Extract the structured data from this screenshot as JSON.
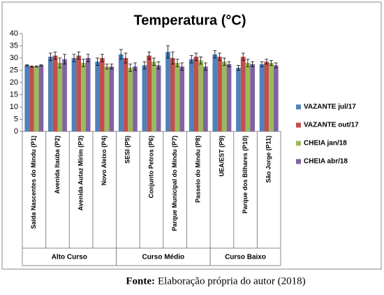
{
  "chart_data": {
    "type": "bar",
    "title": "Temperatura (°C)",
    "categories": [
      "Saída Nascentes do Mindu (P1)",
      "Avenida Itaúba (P2)",
      "Avenida Autaz Mirim (P3)",
      "Novo Aleixo (P4)",
      "SESI (P5)",
      "Conjunto Petros (P6)",
      "Parque Municipal do Mindu (P7)",
      "Passeio do Mindu (P8)",
      "UEA/EST (P9)",
      "Parque dos Bilhares (P10)",
      "São Jorge (P11)"
    ],
    "groups": [
      {
        "name": "Alto Curso",
        "size": 4
      },
      {
        "name": "Curso Médio",
        "size": 4
      },
      {
        "name": "Curso Baixo",
        "size": 3
      }
    ],
    "series": [
      {
        "name": "VAZANTE jul/17",
        "color": "#4f81bd",
        "values": [
          27,
          30.5,
          30,
          28.5,
          31.5,
          27,
          32.5,
          29.5,
          31.5,
          26,
          27.5
        ],
        "errors": [
          0.2,
          1.5,
          1.5,
          1.5,
          2,
          1.5,
          2.5,
          1.5,
          1.5,
          1,
          1
        ]
      },
      {
        "name": "VAZANTE out/17",
        "color": "#c0504d",
        "values": [
          26.5,
          31,
          31,
          30,
          30,
          31,
          30,
          30.5,
          30.5,
          30.5,
          28.5
        ],
        "errors": [
          0.2,
          1.5,
          1.5,
          1.5,
          2,
          1.5,
          2.5,
          1.5,
          1.5,
          1.5,
          1
        ]
      },
      {
        "name": "CHEIA jan/18",
        "color": "#9bbb59",
        "values": [
          26.5,
          28,
          28,
          26.5,
          26,
          28.5,
          28,
          29,
          28.5,
          28,
          28
        ],
        "errors": [
          0.2,
          2,
          1.5,
          1,
          1.5,
          1.5,
          1.5,
          1.5,
          1.5,
          1.5,
          1
        ]
      },
      {
        "name": "CHEIA abr/18",
        "color": "#8064a2",
        "values": [
          27,
          29.5,
          30,
          26.5,
          26.5,
          27,
          26.5,
          26.5,
          27.5,
          27.5,
          27
        ],
        "errors": [
          0.2,
          2,
          1.5,
          1,
          1.5,
          1.5,
          1.5,
          1.5,
          1,
          1,
          1
        ]
      }
    ],
    "ylim": [
      0,
      40
    ],
    "yticks": [
      0,
      5,
      10,
      15,
      20,
      25,
      30,
      35,
      40
    ],
    "grid": false,
    "legend": "right"
  },
  "source_label": "Fonte:",
  "source_text": "Elaboração própria do autor (2018)"
}
